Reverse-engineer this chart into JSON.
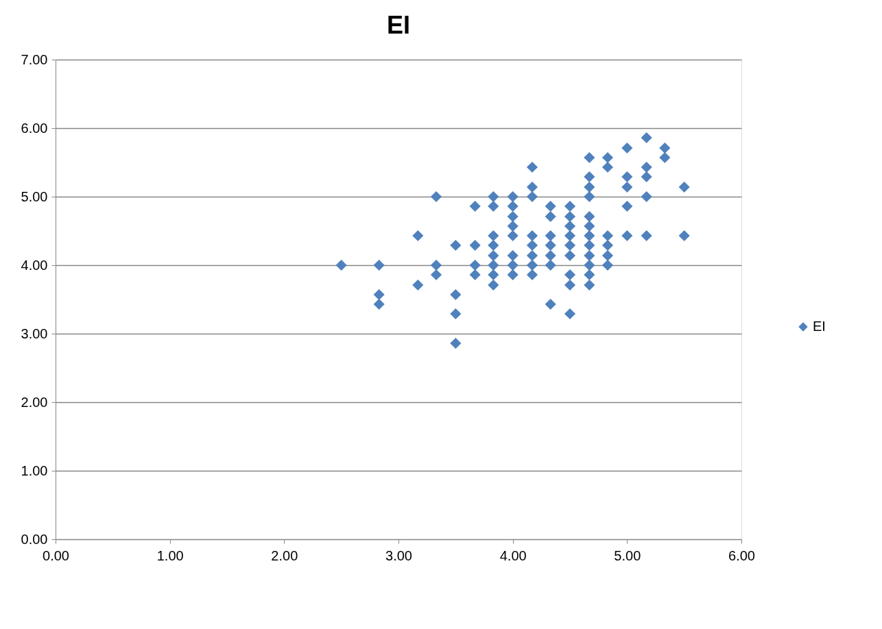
{
  "chart_data": {
    "type": "scatter",
    "title": "EI",
    "series": [
      {
        "name": "EI",
        "color": "#4f81bd",
        "x": [
          2.5,
          2.83,
          2.83,
          2.83,
          3.17,
          3.17,
          3.33,
          3.33,
          3.33,
          3.5,
          3.5,
          3.5,
          3.5,
          3.67,
          3.67,
          3.67,
          3.67,
          3.83,
          3.83,
          3.83,
          3.83,
          3.83,
          3.83,
          3.83,
          3.83,
          4.0,
          4.0,
          4.0,
          4.0,
          4.0,
          4.0,
          4.0,
          4.0,
          4.17,
          4.17,
          4.17,
          4.17,
          4.17,
          4.17,
          4.17,
          4.17,
          4.33,
          4.33,
          4.33,
          4.33,
          4.33,
          4.33,
          4.33,
          4.5,
          4.5,
          4.5,
          4.5,
          4.5,
          4.5,
          4.5,
          4.5,
          4.5,
          4.67,
          4.67,
          4.67,
          4.67,
          4.67,
          4.67,
          4.67,
          4.67,
          4.67,
          4.67,
          4.67,
          4.67,
          4.83,
          4.83,
          4.83,
          4.83,
          4.83,
          4.83,
          5.0,
          5.0,
          5.0,
          5.0,
          5.0,
          5.17,
          5.17,
          5.17,
          5.17,
          5.17,
          5.33,
          5.33,
          5.5,
          5.5
        ],
        "values": [
          4.0,
          4.0,
          3.57,
          3.43,
          4.43,
          3.71,
          5.0,
          4.0,
          3.86,
          4.29,
          3.57,
          3.29,
          2.86,
          4.86,
          4.29,
          4.0,
          3.86,
          5.0,
          4.86,
          4.43,
          4.29,
          4.14,
          4.0,
          3.86,
          3.71,
          5.0,
          4.86,
          4.71,
          4.57,
          4.43,
          4.14,
          4.0,
          3.86,
          5.43,
          5.14,
          5.0,
          4.43,
          4.29,
          4.14,
          4.0,
          3.86,
          4.86,
          4.71,
          4.43,
          4.29,
          4.14,
          4.0,
          3.43,
          4.86,
          4.71,
          4.57,
          4.43,
          4.29,
          4.14,
          3.86,
          3.71,
          3.29,
          5.57,
          5.29,
          5.14,
          5.0,
          4.71,
          4.57,
          4.43,
          4.29,
          4.14,
          4.0,
          3.86,
          3.71,
          5.57,
          5.43,
          4.43,
          4.29,
          4.14,
          4.0,
          5.71,
          5.29,
          5.14,
          4.86,
          4.43,
          5.86,
          5.43,
          5.29,
          5.0,
          4.43,
          5.71,
          5.57,
          5.14,
          4.43
        ]
      }
    ],
    "xlim": [
      0,
      6
    ],
    "ylim": [
      0,
      7
    ],
    "xticks": [
      {
        "value": 0,
        "label": "0.00"
      },
      {
        "value": 1,
        "label": "1.00"
      },
      {
        "value": 2,
        "label": "2.00"
      },
      {
        "value": 3,
        "label": "3.00"
      },
      {
        "value": 4,
        "label": "4.00"
      },
      {
        "value": 5,
        "label": "5.00"
      },
      {
        "value": 6,
        "label": "6.00"
      }
    ],
    "yticks": [
      {
        "value": 0,
        "label": "0.00"
      },
      {
        "value": 1,
        "label": "1.00"
      },
      {
        "value": 2,
        "label": "2.00"
      },
      {
        "value": 3,
        "label": "3.00"
      },
      {
        "value": 4,
        "label": "4.00"
      },
      {
        "value": 5,
        "label": "5.00"
      },
      {
        "value": 6,
        "label": "6.00"
      },
      {
        "value": 7,
        "label": "7.00"
      }
    ],
    "grid": "y",
    "legend": "right",
    "marker": "diamond"
  }
}
